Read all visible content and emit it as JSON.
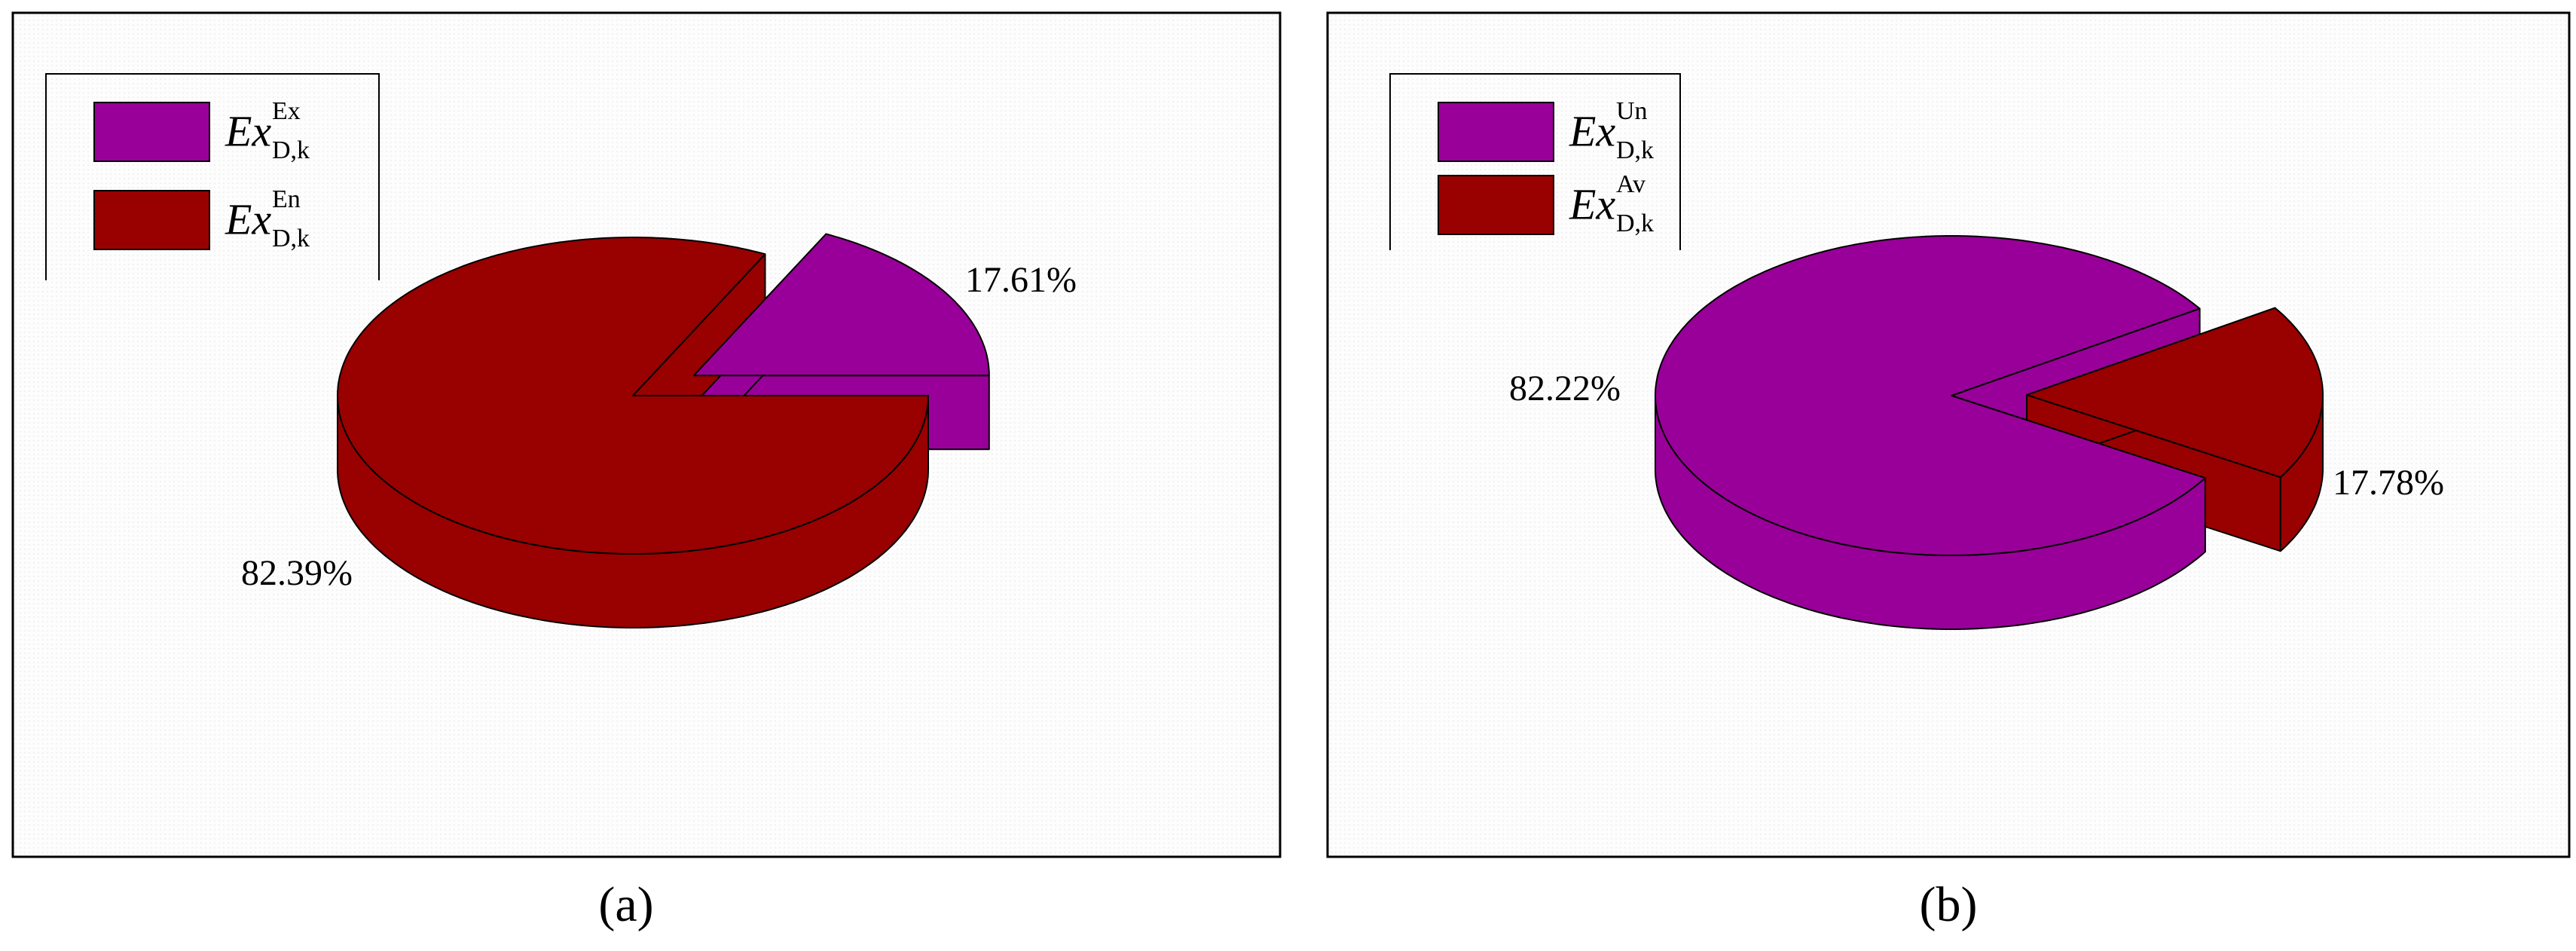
{
  "chart_data": [
    {
      "type": "pie",
      "caption": "(a)",
      "categories": [
        {
          "text": "Ex",
          "sup": "Ex",
          "sub": "D,k"
        },
        {
          "text": "Ex",
          "sup": "En",
          "sub": "D,k"
        }
      ],
      "values": [
        17.61,
        82.39
      ],
      "value_labels": [
        "17.61%",
        "82.39%"
      ],
      "colors": [
        "#990099",
        "#990000"
      ]
    },
    {
      "type": "pie",
      "caption": "(b)",
      "categories": [
        {
          "text": "Ex",
          "sup": "Un",
          "sub": "D,k"
        },
        {
          "text": "Ex",
          "sup": "Av",
          "sub": "D,k"
        }
      ],
      "values": [
        82.22,
        17.78
      ],
      "value_labels": [
        "82.22%",
        "17.78%"
      ],
      "colors": [
        "#990099",
        "#990000"
      ]
    }
  ]
}
